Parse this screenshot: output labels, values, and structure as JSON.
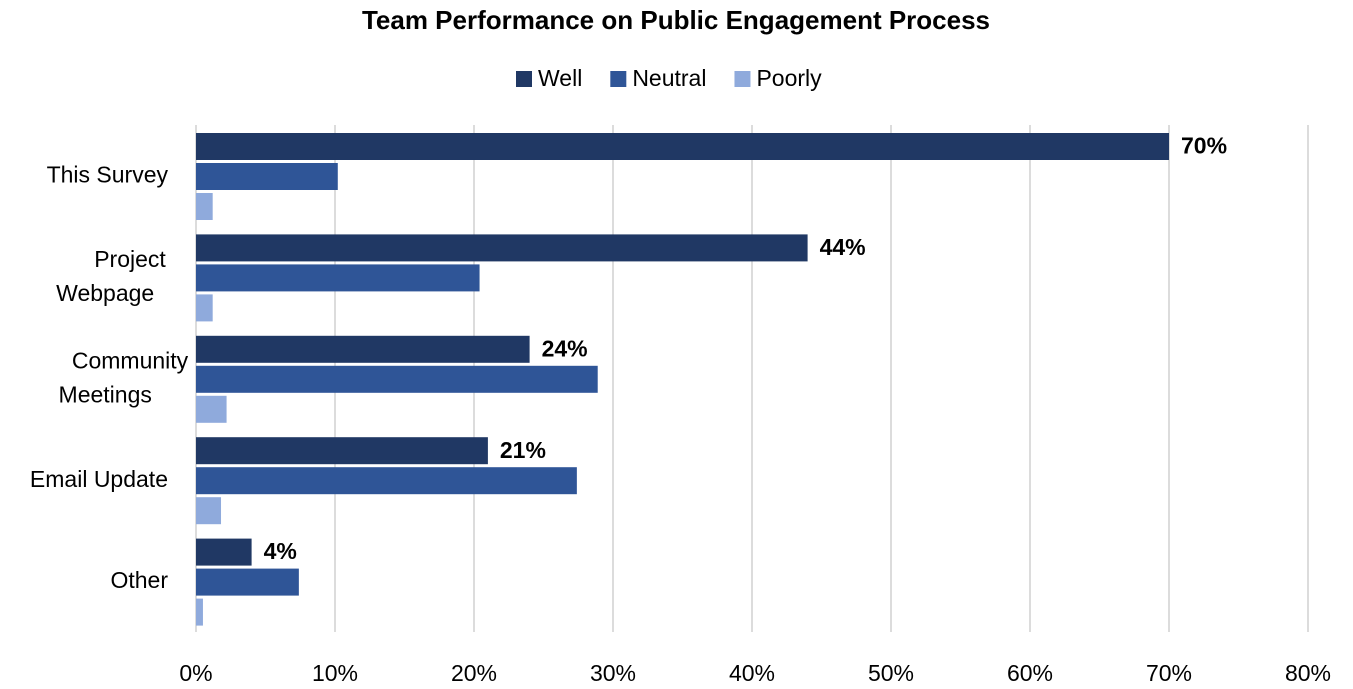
{
  "chart_data": {
    "type": "hbar",
    "title": "Team Performance on Public Engagement Process",
    "categories": [
      "This Survey",
      "Project Webpage",
      "Community Meetings",
      "Email Update",
      "Other"
    ],
    "series": [
      {
        "name": "Well",
        "color": "#203864",
        "values": [
          70,
          44,
          24,
          21,
          4
        ],
        "value_labels": [
          "70%",
          "44%",
          "24%",
          "21%",
          "4%"
        ]
      },
      {
        "name": "Neutral",
        "color": "#2f5597",
        "values": [
          10.2,
          20.4,
          28.9,
          27.4,
          7.4
        ]
      },
      {
        "name": "Poorly",
        "color": "#8faadc",
        "values": [
          1.2,
          1.2,
          2.2,
          1.8,
          0.5
        ]
      }
    ],
    "xlim": [
      0,
      80
    ],
    "xticks": [
      {
        "value": 0,
        "label": "0%"
      },
      {
        "value": 10,
        "label": "10%"
      },
      {
        "value": 20,
        "label": "20%"
      },
      {
        "value": 30,
        "label": "30%"
      },
      {
        "value": 40,
        "label": "40%"
      },
      {
        "value": 50,
        "label": "50%"
      },
      {
        "value": 60,
        "label": "60%"
      },
      {
        "value": 70,
        "label": "70%"
      },
      {
        "value": 80,
        "label": "80%"
      }
    ],
    "grid": true,
    "legend": "top"
  }
}
